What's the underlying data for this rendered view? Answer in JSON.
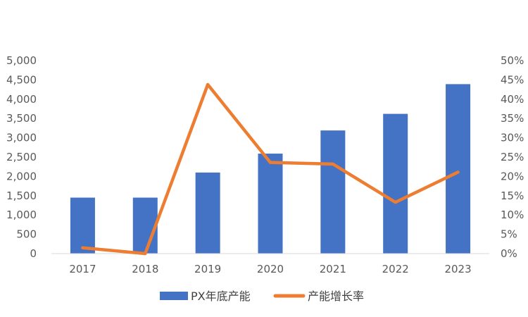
{
  "chart_data": {
    "type": "bar",
    "categories": [
      "2017",
      "2018",
      "2019",
      "2020",
      "2021",
      "2022",
      "2023"
    ],
    "series": [
      {
        "name": "PX年底产能",
        "type": "bar",
        "axis": "left",
        "values": [
          1450,
          1450,
          2100,
          2590,
          3190,
          3620,
          4390
        ],
        "color": "#4472C4"
      },
      {
        "name": "产能增长率",
        "type": "line",
        "axis": "right",
        "values": [
          1.5,
          0.0,
          43.8,
          23.6,
          23.2,
          13.3,
          21.1
        ],
        "color": "#ED7D31"
      }
    ],
    "left_axis": {
      "min": 0,
      "max": 5000,
      "step": 500,
      "tick_labels": [
        "0",
        "500",
        "1,000",
        "1,500",
        "2,000",
        "2,500",
        "3,000",
        "3,500",
        "4,000",
        "4,500",
        "5,000"
      ]
    },
    "right_axis": {
      "min": 0,
      "max": 50,
      "step": 5,
      "tick_labels": [
        "0%",
        "5%",
        "10%",
        "15%",
        "20%",
        "25%",
        "30%",
        "35%",
        "40%",
        "45%",
        "50%"
      ]
    },
    "legend": {
      "position": "bottom"
    },
    "grid": false
  }
}
